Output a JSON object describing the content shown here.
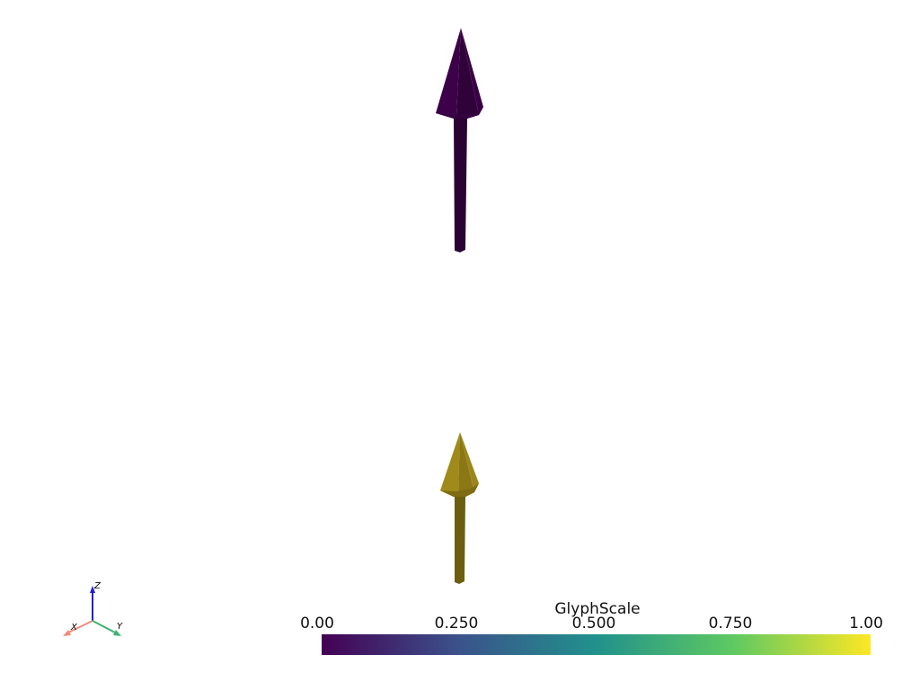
{
  "scene": {
    "glyphs": [
      {
        "name": "arrow-top",
        "glyph_scale": 0.0,
        "color": "#440154"
      },
      {
        "name": "arrow-bottom",
        "glyph_scale": 1.0,
        "color": "#7e6b12"
      }
    ]
  },
  "scalar_bar": {
    "title": "GlyphScale",
    "ticks": [
      "0.00",
      "0.250",
      "0.500",
      "0.750",
      "1.00"
    ],
    "range": [
      0.0,
      1.0
    ],
    "colormap": "viridis",
    "colormap_stops": [
      "#440154",
      "#3b528b",
      "#21918c",
      "#5ec962",
      "#fde725"
    ]
  },
  "axes_widget": {
    "x_label": "X",
    "y_label": "Y",
    "z_label": "Z",
    "x_color": "#f08a7a",
    "y_color": "#3cb371",
    "z_color": "#1f1fd6"
  }
}
